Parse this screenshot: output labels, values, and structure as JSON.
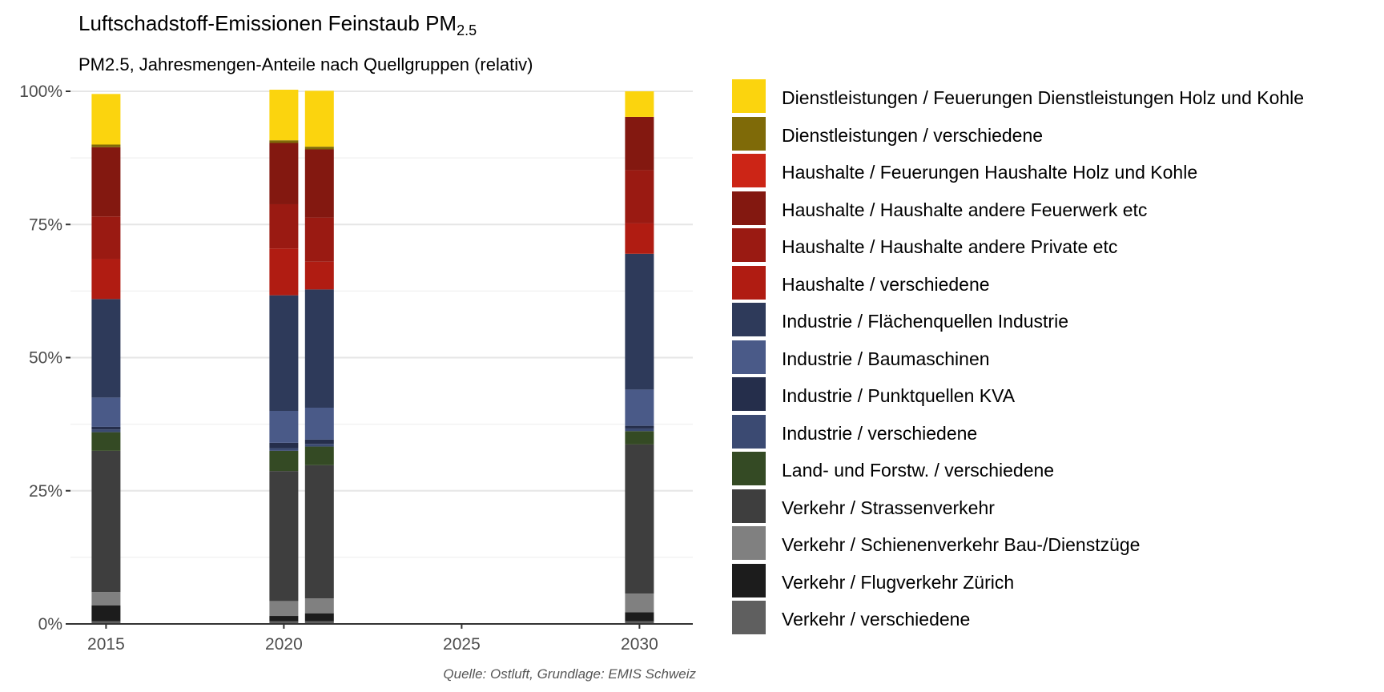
{
  "header": {
    "title_main": "Luftschadstoff-Emissionen Feinstaub PM",
    "title_sub": "2.5",
    "subtitle": "PM2.5, Jahresmengen-Anteile nach Quellgruppen (relativ)",
    "caption": "Quelle: Ostluft, Grundlage: EMIS Schweiz"
  },
  "chart_data": {
    "type": "bar",
    "stacked": true,
    "title": "Luftschadstoff-Emissionen Feinstaub PM2.5",
    "subtitle": "PM2.5, Jahresmengen-Anteile nach Quellgruppen (relativ)",
    "xlabel": "",
    "ylabel": "",
    "x_ticks": [
      "2015",
      "2020",
      "2025",
      "2030"
    ],
    "x_range": [
      2014,
      2031.5
    ],
    "y_ticks": [
      "0%",
      "25%",
      "50%",
      "75%",
      "100%"
    ],
    "ylim": [
      0,
      100
    ],
    "grid": true,
    "legend_position": "right",
    "bars": [
      {
        "x": 2015,
        "segments": [
          0.5,
          3,
          2.5,
          26.5,
          3.5,
          0.5,
          0.5,
          5.5,
          18.5,
          7.5,
          8,
          13,
          0,
          0.5,
          9.5
        ]
      },
      {
        "x": 2020,
        "segments": [
          0.5,
          1,
          2.8,
          24.4,
          3.8,
          0.5,
          1,
          6,
          21.7,
          8.8,
          8.3,
          11.5,
          0,
          0.5,
          9.5
        ]
      },
      {
        "x": 2021,
        "segments": [
          0.5,
          1.5,
          2.8,
          25,
          3.5,
          0.5,
          0.8,
          6,
          22.2,
          5.2,
          8.3,
          12.8,
          0,
          0.5,
          10.5
        ]
      },
      {
        "x": 2030,
        "segments": [
          0.5,
          1.7,
          3.5,
          28,
          2.5,
          0.5,
          0.5,
          6.8,
          25.5,
          5.7,
          10,
          10,
          0,
          0,
          4.8
        ]
      }
    ],
    "series": [
      {
        "name": "Verkehr / verschiedene",
        "color": "#5f5f5f"
      },
      {
        "name": "Verkehr / Flugverkehr Zürich",
        "color": "#1c1c1c"
      },
      {
        "name": "Verkehr / Schienenverkehr Bau-/Dienstzüge",
        "color": "#808080"
      },
      {
        "name": "Verkehr / Strassenverkehr",
        "color": "#3e3e3e"
      },
      {
        "name": "Land- und Forstw. / verschiedene",
        "color": "#344a24"
      },
      {
        "name": "Industrie / verschiedene",
        "color": "#3b4a72"
      },
      {
        "name": "Industrie / Punktquellen KVA",
        "color": "#252e4b"
      },
      {
        "name": "Industrie / Baumaschinen",
        "color": "#4a5a88"
      },
      {
        "name": "Industrie / Flächenquellen Industrie",
        "color": "#2e3a5a"
      },
      {
        "name": "Haushalte / verschiedene",
        "color": "#b01c12"
      },
      {
        "name": "Haushalte / Haushalte andere Private etc",
        "color": "#9a1a12"
      },
      {
        "name": "Haushalte / Haushalte andere Feuerwerk etc",
        "color": "#831810"
      },
      {
        "name": "Haushalte / Feuerungen Haushalte Holz und Kohle",
        "color": "#cc2516"
      },
      {
        "name": "Dienstleistungen / verschiedene",
        "color": "#7f6a08"
      },
      {
        "name": "Dienstleistungen / Feuerungen Dienstleistungen Holz und Kohle",
        "color": "#fbd40e"
      }
    ],
    "legend_entries": [
      {
        "label": "Dienstleistungen / Feuerungen Dienstleistungen Holz und Kohle",
        "color": "#fbd40e"
      },
      {
        "label": "Dienstleistungen / verschiedene",
        "color": "#7f6a08"
      },
      {
        "label": "Haushalte / Feuerungen Haushalte Holz und Kohle",
        "color": "#cc2516"
      },
      {
        "label": "Haushalte / Haushalte andere Feuerwerk etc",
        "color": "#831810"
      },
      {
        "label": "Haushalte / Haushalte andere Private etc",
        "color": "#9a1a12"
      },
      {
        "label": "Haushalte / verschiedene",
        "color": "#b01c12"
      },
      {
        "label": "Industrie / Flächenquellen Industrie",
        "color": "#2e3a5a"
      },
      {
        "label": "Industrie / Baumaschinen",
        "color": "#4a5a88"
      },
      {
        "label": "Industrie / Punktquellen KVA",
        "color": "#252e4b"
      },
      {
        "label": "Industrie / verschiedene",
        "color": "#3b4a72"
      },
      {
        "label": "Land- und Forstw. / verschiedene",
        "color": "#344a24"
      },
      {
        "label": "Verkehr / Strassenverkehr",
        "color": "#3e3e3e"
      },
      {
        "label": "Verkehr / Schienenverkehr Bau-/Dienstzüge",
        "color": "#808080"
      },
      {
        "label": "Verkehr / Flugverkehr Zürich",
        "color": "#1c1c1c"
      },
      {
        "label": "Verkehr / verschiedene",
        "color": "#5f5f5f"
      }
    ]
  }
}
